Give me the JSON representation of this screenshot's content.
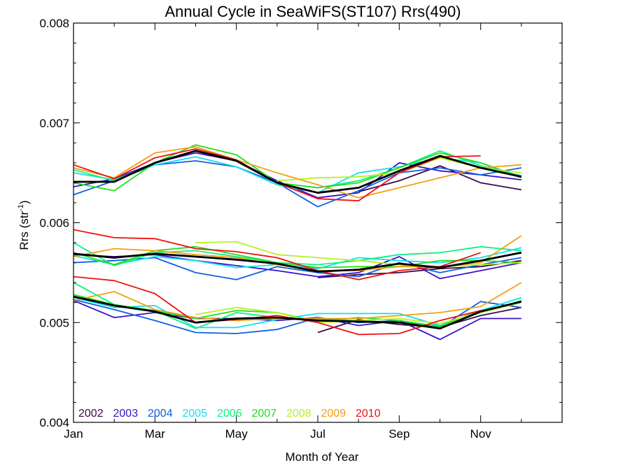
{
  "chart_data": {
    "type": "line",
    "title": "Annual Cycle in SeaWiFS(ST107) Rrs(490)",
    "xlabel": "Month of Year",
    "ylabel_main": "Rrs (str",
    "ylabel_sup": "-1",
    "ylabel_close": ")",
    "xlim": [
      1,
      13
    ],
    "ylim": [
      0.004,
      0.008
    ],
    "x_ticks": [
      {
        "value": 1,
        "label": "Jan"
      },
      {
        "value": 3,
        "label": "Mar"
      },
      {
        "value": 5,
        "label": "May"
      },
      {
        "value": 7,
        "label": "Jul"
      },
      {
        "value": 9,
        "label": "Sep"
      },
      {
        "value": 11,
        "label": "Nov"
      }
    ],
    "y_ticks": [
      {
        "value": 0.004,
        "label": "0.004"
      },
      {
        "value": 0.005,
        "label": "0.005"
      },
      {
        "value": 0.006,
        "label": "0.006"
      },
      {
        "value": 0.007,
        "label": "0.007"
      },
      {
        "value": 0.008,
        "label": "0.008"
      }
    ],
    "x": [
      1,
      2,
      3,
      4,
      5,
      6,
      7,
      8,
      9,
      10,
      11,
      12
    ],
    "series": [
      {
        "name": "2002",
        "color": "#3a0a4a",
        "bands": [
          [
            null,
            null,
            null,
            null,
            null,
            null,
            null,
            6.31,
            6.42,
            6.57,
            6.4,
            6.33
          ],
          [
            null,
            null,
            null,
            null,
            null,
            null,
            5.45,
            5.48,
            5.5,
            5.54,
            5.56,
            5.62
          ],
          [
            null,
            null,
            null,
            null,
            null,
            null,
            4.9,
            5.03,
            4.98,
            4.95,
            5.07,
            5.15
          ]
        ]
      },
      {
        "name": "2003",
        "color": "#3a10c8",
        "bands": [
          [
            6.36,
            6.44,
            6.6,
            6.7,
            6.62,
            6.42,
            6.25,
            6.3,
            6.6,
            6.52,
            6.48,
            6.43
          ],
          [
            5.68,
            5.66,
            5.68,
            5.62,
            5.57,
            5.52,
            5.46,
            5.5,
            5.66,
            5.44,
            5.52,
            5.6
          ],
          [
            5.22,
            5.05,
            5.1,
            5.04,
            5.04,
            5.02,
            5.05,
            4.97,
            5.02,
            4.83,
            5.04,
            5.04
          ]
        ]
      },
      {
        "name": "2004",
        "color": "#1060e0",
        "bands": [
          [
            6.28,
            6.42,
            6.58,
            6.62,
            6.56,
            6.4,
            6.16,
            6.32,
            6.5,
            6.55,
            6.48,
            6.55
          ],
          [
            5.6,
            5.62,
            5.65,
            5.5,
            5.43,
            5.56,
            5.5,
            5.46,
            5.6,
            5.5,
            5.58,
            5.65
          ],
          [
            5.23,
            5.13,
            5.02,
            4.9,
            4.89,
            4.93,
            5.05,
            5.0,
            5.02,
            4.95,
            5.21,
            5.15
          ]
        ]
      },
      {
        "name": "2005",
        "color": "#10e0f0",
        "bands": [
          [
            6.5,
            6.43,
            6.58,
            6.66,
            6.56,
            6.38,
            6.3,
            6.5,
            6.56,
            6.65,
            6.6,
            6.46
          ],
          [
            5.67,
            5.58,
            5.66,
            5.62,
            5.55,
            5.58,
            5.54,
            5.65,
            5.62,
            5.6,
            5.65,
            5.75
          ],
          [
            5.25,
            5.15,
            5.17,
            4.95,
            4.95,
            5.03,
            5.09,
            5.09,
            5.09,
            4.97,
            5.12,
            5.25
          ]
        ]
      },
      {
        "name": "2006",
        "color": "#10f080",
        "bands": [
          [
            6.53,
            6.42,
            6.6,
            6.72,
            6.62,
            6.4,
            6.35,
            6.42,
            6.55,
            6.72,
            6.57,
            6.47
          ],
          [
            5.8,
            5.57,
            5.7,
            5.72,
            5.66,
            5.6,
            5.58,
            5.62,
            5.68,
            5.7,
            5.76,
            5.72
          ],
          [
            5.4,
            5.18,
            5.12,
            4.94,
            5.1,
            5.05,
            5.03,
            5.02,
            5.0,
            4.97,
            5.1,
            5.22
          ]
        ]
      },
      {
        "name": "2007",
        "color": "#20e020",
        "bands": [
          [
            6.4,
            6.32,
            6.6,
            6.78,
            6.68,
            6.4,
            6.35,
            6.4,
            6.55,
            6.7,
            6.6,
            6.45
          ],
          [
            5.7,
            5.58,
            5.72,
            5.76,
            5.68,
            5.6,
            5.55,
            5.56,
            5.56,
            5.62,
            5.62,
            5.6
          ],
          [
            5.28,
            5.18,
            5.12,
            5.04,
            5.12,
            5.1,
            5.01,
            5.05,
            5.02,
            4.96,
            5.12,
            5.2
          ]
        ]
      },
      {
        "name": "2008",
        "color": "#b8f020",
        "bands": [
          [
            null,
            null,
            null,
            null,
            null,
            6.42,
            6.45,
            6.46,
            6.5,
            6.65,
            6.55,
            6.5
          ],
          [
            null,
            null,
            null,
            5.8,
            5.81,
            5.68,
            5.65,
            5.62,
            5.58,
            5.56,
            5.58,
            5.6
          ],
          [
            null,
            null,
            null,
            5.08,
            5.15,
            5.1,
            5.0,
            5.02,
            5.04,
            4.99,
            5.1,
            5.2
          ]
        ]
      },
      {
        "name": "2009",
        "color": "#f0a010",
        "bands": [
          [
            6.55,
            6.45,
            6.7,
            6.76,
            6.63,
            6.5,
            6.38,
            6.25,
            6.35,
            6.45,
            6.55,
            6.58
          ],
          [
            5.66,
            5.74,
            5.72,
            5.68,
            5.65,
            5.58,
            5.52,
            5.52,
            5.56,
            5.56,
            5.6,
            5.87
          ],
          [
            5.22,
            5.31,
            5.13,
            5.05,
            5.02,
            5.04,
            5.04,
            5.04,
            5.07,
            5.1,
            5.16,
            5.4
          ]
        ]
      },
      {
        "name": "2010",
        "color": "#f01010",
        "bands": [
          [
            6.58,
            6.44,
            6.65,
            6.74,
            6.63,
            6.4,
            6.24,
            6.22,
            6.5,
            6.66,
            6.67,
            null
          ],
          [
            5.93,
            5.85,
            5.84,
            5.74,
            5.71,
            5.65,
            5.52,
            5.43,
            5.52,
            5.56,
            5.7,
            null
          ],
          [
            5.46,
            5.42,
            5.29,
            5.0,
            5.03,
            5.07,
            5.0,
            4.88,
            4.89,
            5.02,
            5.12,
            null
          ]
        ]
      }
    ],
    "mean": {
      "color": "#000000",
      "bands": [
        [
          6.41,
          6.41,
          6.6,
          6.72,
          6.62,
          6.4,
          6.3,
          6.35,
          6.52,
          6.67,
          6.55,
          6.46
        ],
        [
          5.69,
          5.65,
          5.69,
          5.66,
          5.63,
          5.59,
          5.51,
          5.53,
          5.59,
          5.55,
          5.62,
          5.7
        ],
        [
          5.26,
          5.17,
          5.11,
          5.0,
          5.04,
          5.05,
          5.02,
          5.01,
          5.0,
          4.94,
          5.11,
          5.21
        ]
      ]
    },
    "value_scale": 0.001,
    "legend_placement": "bottom-left",
    "grid": false
  }
}
